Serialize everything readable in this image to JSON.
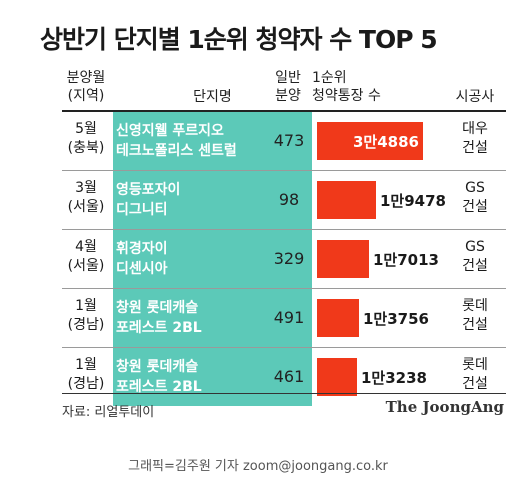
{
  "chart_data": {
    "type": "bar",
    "title": "상반기 단지별 1순위 청약자 수 TOP 5",
    "columns": {
      "region": [
        "분양월",
        "(지역)"
      ],
      "complex": "단지명",
      "supply": [
        "일반",
        "분양"
      ],
      "applicants": [
        "1순위",
        "청약통장 수"
      ],
      "builder": "시공사"
    },
    "rows": [
      {
        "month": "5월",
        "region": "(충북)",
        "complex": [
          "신영지웰 푸르지오",
          "테크노폴리스 센트럴"
        ],
        "supply": "473",
        "applicants": 34886,
        "label": "3만4886",
        "builder": [
          "대우",
          "건설"
        ]
      },
      {
        "month": "3월",
        "region": "(서울)",
        "complex": [
          "영등포자이",
          "디그니티"
        ],
        "supply": "98",
        "applicants": 19478,
        "label": "1만9478",
        "builder": [
          "GS",
          "건설"
        ]
      },
      {
        "month": "4월",
        "region": "(서울)",
        "complex": [
          "휘경자이",
          " 디센시아"
        ],
        "supply": "329",
        "applicants": 17013,
        "label": "1만7013",
        "builder": [
          "GS",
          "건설"
        ]
      },
      {
        "month": "1월",
        "region": "(경남)",
        "complex": [
          "창원 롯데캐슬",
          "포레스트 2BL"
        ],
        "supply": "491",
        "applicants": 13756,
        "label": "1만3756",
        "builder": [
          "롯데",
          "건설"
        ]
      },
      {
        "month": "1월",
        "region": "(경남)",
        "complex": [
          "창원 롯데캐슬",
          "포레스트 2BL"
        ],
        "supply": "461",
        "applicants": 13238,
        "label": "1만3238",
        "builder": [
          "롯데",
          "건설"
        ]
      }
    ],
    "bar_color": "#f0391a",
    "highlight_color": "#5cc9b8"
  },
  "source": "자료: 리얼투데이",
  "logo": "The JoongAng",
  "credit": "그래픽=김주원 기자 zoom@joongang.co.kr"
}
